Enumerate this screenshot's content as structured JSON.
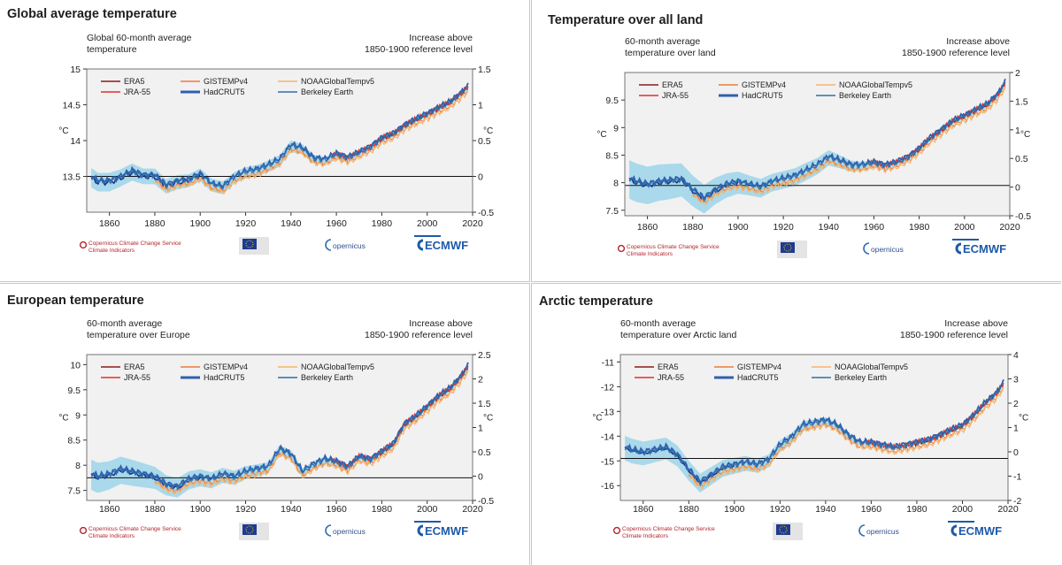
{
  "panels": [
    {
      "title": "Global average temperature",
      "left_caption": [
        "Global 60-month average",
        "temperature"
      ],
      "right_caption": [
        "Increase above",
        "1850-1900 reference level"
      ],
      "left_unit": "°C",
      "right_unit": "°C",
      "legend": {
        "col1": [
          "ERA5",
          "JRA-55"
        ],
        "col2": [
          "GISTEMPv4",
          "HadCRUT5"
        ],
        "col3": [
          "NOAAGlobalTempv5",
          "Berkeley Earth"
        ]
      },
      "logos": {
        "c3s": [
          "Copernicus Climate Change Service",
          "Climate Indicators"
        ],
        "copernicus": "opernicus",
        "ecmwf": "ECMWF"
      }
    },
    {
      "title": "Temperature over all land",
      "left_caption": [
        "60-month average",
        "temperature over land"
      ],
      "right_caption": [
        "Increase above",
        "1850-1900 reference level"
      ],
      "left_unit": "°C",
      "right_unit": "°C",
      "legend": {
        "col1": [
          "ERA5",
          "JRA-55"
        ],
        "col2": [
          "GISTEMPv4",
          "HadCRUT5"
        ],
        "col3": [
          "NOAAGlobalTempv5",
          "Berkeley Earth"
        ]
      },
      "logos": {
        "c3s": [
          "Copernicus Climate Change Service",
          "Climate Indicators"
        ],
        "copernicus": "opernicus",
        "ecmwf": "ECMWF"
      }
    },
    {
      "title": "European temperature",
      "left_caption": [
        "60-month average",
        "temperature over Europe"
      ],
      "right_caption": [
        "Increase above",
        "1850-1900 reference level"
      ],
      "left_unit": "°C",
      "right_unit": "°C",
      "legend": {
        "col1": [
          "ERA5",
          "JRA-55"
        ],
        "col2": [
          "GISTEMPv4",
          "HadCRUT5"
        ],
        "col3": [
          "NOAAGlobalTempv5",
          "Berkeley Earth"
        ]
      },
      "logos": {
        "c3s": [
          "Copernicus Climate Change Service",
          "Climate Indicators"
        ],
        "copernicus": "opernicus",
        "ecmwf": "ECMWF"
      }
    },
    {
      "title": "Arctic temperature",
      "left_caption": [
        "60-month average",
        "temperature over Arctic land"
      ],
      "right_caption": [
        "Increase above",
        "1850-1900 reference level"
      ],
      "left_unit": "°C",
      "right_unit": "°C",
      "legend": {
        "col1": [
          "ERA5",
          "JRA-55"
        ],
        "col2": [
          "GISTEMPv4",
          "HadCRUT5"
        ],
        "col3": [
          "NOAAGlobalTempv5",
          "Berkeley Earth"
        ]
      },
      "logos": {
        "c3s": [
          "Copernicus Climate Change Service",
          "Climate Indicators"
        ],
        "copernicus": "opernicus",
        "ecmwf": "ECMWF"
      }
    }
  ],
  "colors": {
    "ERA5": "#8b1a1a",
    "JRA-55": "#e0312b",
    "GISTEMPv4": "#ef7b3a",
    "NOAAGlobalTempv5": "#f6b46a",
    "HadCRUT5": "#2f5fb0",
    "Berkeley Earth": "#2f6fa8",
    "uncertainty_band": "#a9d9ea",
    "plot_background": "#f1f1f1",
    "early_series": "#1e2f86"
  },
  "chart_data": [
    {
      "type": "line",
      "x_range": [
        1850,
        2020
      ],
      "x_ticks": [
        1860,
        1880,
        1900,
        1920,
        1940,
        1960,
        1980,
        2000,
        2020
      ],
      "y_left_range": [
        13.0,
        15.0
      ],
      "y_left_ticks": [
        13.5,
        14,
        14.5,
        15
      ],
      "y_right_range": [
        -0.5,
        1.5
      ],
      "y_right_ticks": [
        -0.5,
        0,
        0.5,
        1,
        1.5
      ],
      "reference_level": 13.5,
      "anchors": {
        "x": [
          1850,
          1855,
          1860,
          1865,
          1870,
          1875,
          1880,
          1885,
          1890,
          1895,
          1900,
          1905,
          1910,
          1915,
          1920,
          1925,
          1930,
          1935,
          1940,
          1945,
          1950,
          1955,
          1960,
          1965,
          1970,
          1975,
          1980,
          1985,
          1990,
          1995,
          2000,
          2005,
          2010,
          2015,
          2018
        ],
        "y": [
          13.52,
          13.42,
          13.42,
          13.48,
          13.56,
          13.5,
          13.5,
          13.36,
          13.42,
          13.44,
          13.52,
          13.38,
          13.34,
          13.48,
          13.55,
          13.58,
          13.64,
          13.72,
          13.92,
          13.88,
          13.74,
          13.72,
          13.8,
          13.75,
          13.82,
          13.9,
          14.02,
          14.08,
          14.2,
          14.28,
          14.36,
          14.44,
          14.52,
          14.65,
          14.74
        ]
      },
      "band_halfwidth": [
        0.14,
        0.13,
        0.13,
        0.12,
        0.12,
        0.11,
        0.11,
        0.1,
        0.1,
        0.09,
        0.09,
        0.09,
        0.09,
        0.08,
        0.08,
        0.08,
        0.08,
        0.08,
        0.08,
        0.07,
        0.06,
        0.05,
        0.05,
        0.04,
        0.04,
        0.04,
        0.04,
        0.03,
        0.03,
        0.03,
        0.03,
        0.03,
        0.03,
        0.03,
        0.03
      ],
      "series": [
        {
          "name": "ERA5",
          "start": 1979
        },
        {
          "name": "JRA-55",
          "start": 1958
        },
        {
          "name": "GISTEMPv4",
          "start": 1880
        },
        {
          "name": "NOAAGlobalTempv5",
          "start": 1880
        },
        {
          "name": "HadCRUT5",
          "start": 1850
        },
        {
          "name": "Berkeley Earth",
          "start": 1850
        }
      ]
    },
    {
      "type": "line",
      "x_range": [
        1850,
        2020
      ],
      "x_ticks": [
        1860,
        1880,
        1900,
        1920,
        1940,
        1960,
        1980,
        2000,
        2020
      ],
      "y_left_range": [
        7.4,
        10.0
      ],
      "y_left_ticks": [
        7.5,
        8,
        8.5,
        9,
        9.5
      ],
      "y_right_range": [
        -0.5,
        2.0
      ],
      "y_right_ticks": [
        -0.5,
        0,
        0.5,
        1,
        1.5,
        2
      ],
      "reference_level": 7.95,
      "anchors": {
        "x": [
          1850,
          1855,
          1860,
          1865,
          1870,
          1875,
          1880,
          1885,
          1890,
          1895,
          1900,
          1905,
          1910,
          1915,
          1920,
          1925,
          1930,
          1935,
          1940,
          1945,
          1950,
          1955,
          1960,
          1965,
          1970,
          1975,
          1980,
          1985,
          1990,
          1995,
          2000,
          2005,
          2010,
          2015,
          2018
        ],
        "y": [
          8.1,
          8.0,
          7.95,
          8.0,
          8.02,
          8.05,
          7.85,
          7.7,
          7.85,
          7.95,
          8.0,
          7.95,
          7.9,
          8.0,
          8.05,
          8.1,
          8.2,
          8.3,
          8.45,
          8.38,
          8.3,
          8.3,
          8.35,
          8.3,
          8.35,
          8.45,
          8.6,
          8.8,
          8.95,
          9.1,
          9.2,
          9.3,
          9.4,
          9.6,
          9.8
        ]
      },
      "band_halfwidth": [
        0.35,
        0.35,
        0.34,
        0.33,
        0.32,
        0.3,
        0.28,
        0.26,
        0.24,
        0.22,
        0.2,
        0.18,
        0.17,
        0.16,
        0.16,
        0.16,
        0.16,
        0.15,
        0.14,
        0.12,
        0.1,
        0.08,
        0.07,
        0.06,
        0.05,
        0.05,
        0.05,
        0.04,
        0.04,
        0.04,
        0.04,
        0.04,
        0.04,
        0.04,
        0.04
      ],
      "series": [
        {
          "name": "ERA5",
          "start": 1979
        },
        {
          "name": "JRA-55",
          "start": 1958
        },
        {
          "name": "GISTEMPv4",
          "start": 1880
        },
        {
          "name": "NOAAGlobalTempv5",
          "start": 1880
        },
        {
          "name": "HadCRUT5",
          "start": 1850
        },
        {
          "name": "Berkeley Earth",
          "start": 1850
        }
      ]
    },
    {
      "type": "line",
      "x_range": [
        1850,
        2020
      ],
      "x_ticks": [
        1860,
        1880,
        1900,
        1920,
        1940,
        1960,
        1980,
        2000,
        2020
      ],
      "y_left_range": [
        7.3,
        10.2
      ],
      "y_left_ticks": [
        7.5,
        8,
        8.5,
        9,
        9.5,
        10
      ],
      "y_right_range": [
        -0.5,
        2.5
      ],
      "y_right_ticks": [
        -0.5,
        0,
        0.5,
        1,
        1.5,
        2,
        2.5
      ],
      "reference_level": 7.75,
      "anchors": {
        "x": [
          1850,
          1855,
          1860,
          1865,
          1870,
          1875,
          1880,
          1885,
          1890,
          1895,
          1900,
          1905,
          1910,
          1915,
          1920,
          1925,
          1930,
          1935,
          1940,
          1945,
          1950,
          1955,
          1960,
          1965,
          1970,
          1975,
          1980,
          1985,
          1990,
          1995,
          2000,
          2005,
          2010,
          2015,
          2018
        ],
        "y": [
          7.85,
          7.75,
          7.8,
          7.9,
          7.85,
          7.8,
          7.75,
          7.6,
          7.55,
          7.7,
          7.75,
          7.7,
          7.8,
          7.75,
          7.85,
          7.9,
          7.95,
          8.3,
          8.2,
          7.85,
          8.0,
          8.1,
          8.05,
          7.95,
          8.15,
          8.1,
          8.25,
          8.4,
          8.8,
          8.95,
          9.15,
          9.35,
          9.5,
          9.75,
          9.95
        ]
      },
      "band_halfwidth": [
        0.3,
        0.3,
        0.28,
        0.27,
        0.26,
        0.24,
        0.22,
        0.2,
        0.19,
        0.18,
        0.17,
        0.16,
        0.15,
        0.14,
        0.13,
        0.12,
        0.11,
        0.1,
        0.1,
        0.09,
        0.08,
        0.07,
        0.06,
        0.05,
        0.05,
        0.05,
        0.05,
        0.05,
        0.05,
        0.05,
        0.05,
        0.05,
        0.05,
        0.05,
        0.05
      ],
      "series": [
        {
          "name": "ERA5",
          "start": 1979
        },
        {
          "name": "JRA-55",
          "start": 1958
        },
        {
          "name": "GISTEMPv4",
          "start": 1880
        },
        {
          "name": "NOAAGlobalTempv5",
          "start": 1880
        },
        {
          "name": "HadCRUT5",
          "start": 1850
        },
        {
          "name": "Berkeley Earth",
          "start": 1850
        }
      ]
    },
    {
      "type": "line",
      "x_range": [
        1850,
        2020
      ],
      "x_ticks": [
        1860,
        1880,
        1900,
        1920,
        1940,
        1960,
        1980,
        2000,
        2020
      ],
      "y_left_range": [
        -16.6,
        -10.7
      ],
      "y_left_ticks": [
        -16,
        -15,
        -14,
        -13,
        -12,
        -11
      ],
      "y_right_range": [
        -2,
        4
      ],
      "y_right_ticks": [
        -2,
        -1,
        0,
        1,
        2,
        3,
        4
      ],
      "reference_level": -14.9,
      "anchors": {
        "x": [
          1850,
          1855,
          1860,
          1865,
          1870,
          1875,
          1880,
          1885,
          1890,
          1895,
          1900,
          1905,
          1910,
          1915,
          1920,
          1925,
          1930,
          1935,
          1940,
          1945,
          1950,
          1955,
          1960,
          1965,
          1970,
          1975,
          1980,
          1985,
          1990,
          1995,
          2000,
          2005,
          2010,
          2015,
          2018
        ],
        "y": [
          -14.4,
          -14.6,
          -14.7,
          -14.6,
          -14.5,
          -14.8,
          -15.4,
          -15.9,
          -15.6,
          -15.3,
          -15.2,
          -15.1,
          -15.2,
          -15.0,
          -14.4,
          -14.1,
          -13.6,
          -13.5,
          -13.4,
          -13.6,
          -14.0,
          -14.3,
          -14.3,
          -14.4,
          -14.5,
          -14.4,
          -14.3,
          -14.2,
          -14.0,
          -13.8,
          -13.6,
          -13.2,
          -12.7,
          -12.3,
          -11.9
        ]
      },
      "band_halfwidth": [
        0.5,
        0.5,
        0.48,
        0.46,
        0.44,
        0.42,
        0.4,
        0.38,
        0.36,
        0.34,
        0.32,
        0.3,
        0.28,
        0.26,
        0.24,
        0.22,
        0.2,
        0.18,
        0.16,
        0.14,
        0.12,
        0.1,
        0.09,
        0.08,
        0.07,
        0.07,
        0.06,
        0.06,
        0.06,
        0.06,
        0.06,
        0.06,
        0.06,
        0.06,
        0.06
      ],
      "series": [
        {
          "name": "ERA5",
          "start": 1979
        },
        {
          "name": "JRA-55",
          "start": 1958
        },
        {
          "name": "GISTEMPv4",
          "start": 1880
        },
        {
          "name": "NOAAGlobalTempv5",
          "start": 1880
        },
        {
          "name": "HadCRUT5",
          "start": 1850
        },
        {
          "name": "Berkeley Earth",
          "start": 1850
        }
      ]
    }
  ]
}
